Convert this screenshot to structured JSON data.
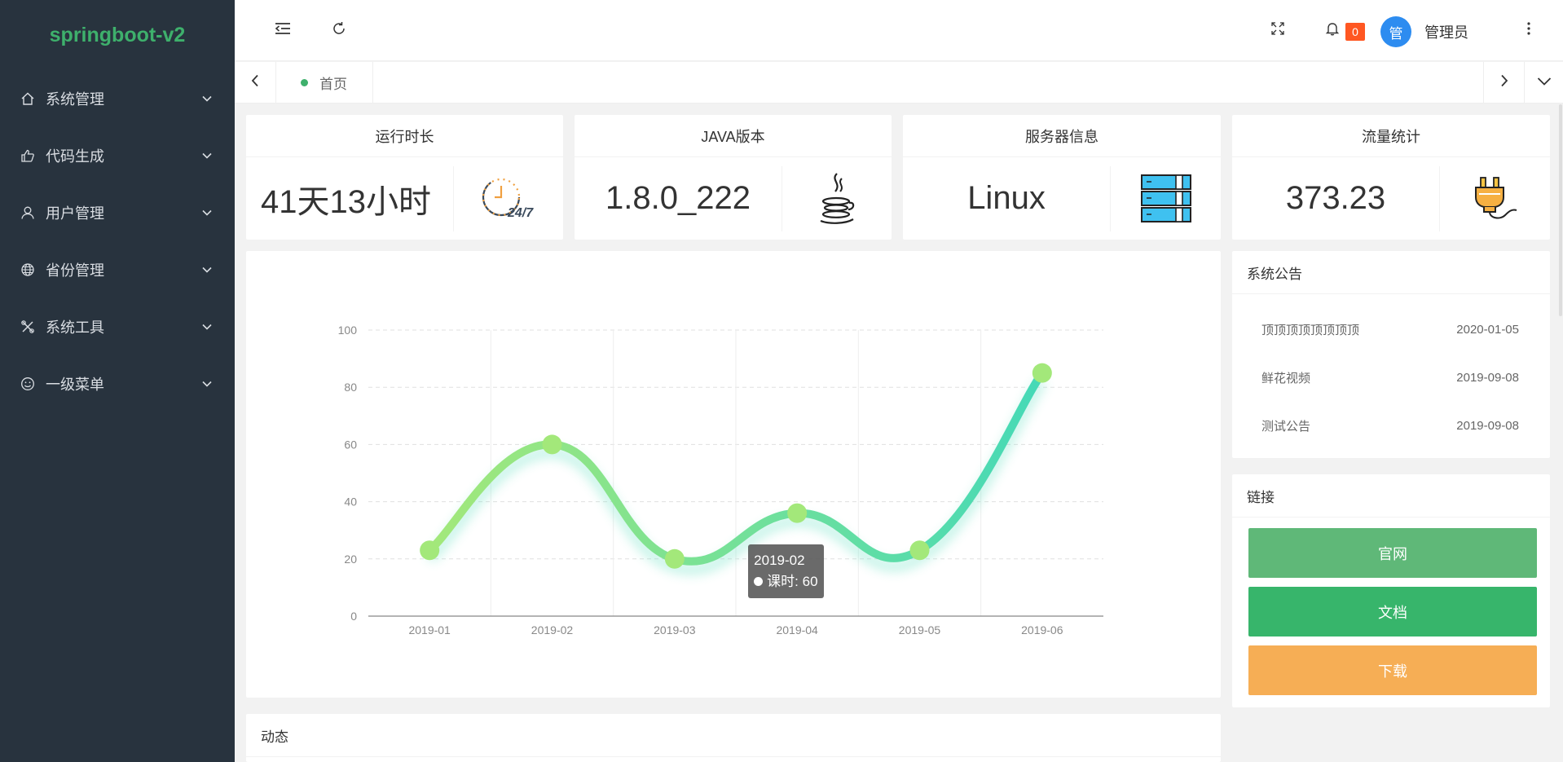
{
  "app": {
    "logo": "springboot-v2"
  },
  "sidebar": {
    "items": [
      {
        "label": "系统管理",
        "icon": "home-icon"
      },
      {
        "label": "代码生成",
        "icon": "thumbs-up-icon"
      },
      {
        "label": "用户管理",
        "icon": "user-icon"
      },
      {
        "label": "省份管理",
        "icon": "globe-icon"
      },
      {
        "label": "系统工具",
        "icon": "tools-icon"
      },
      {
        "label": "一级菜单",
        "icon": "smile-icon"
      }
    ]
  },
  "header": {
    "notification_count": "0",
    "avatar_text": "管",
    "username": "管理员"
  },
  "tabs": {
    "home": "首页"
  },
  "stats": [
    {
      "title": "运行时长",
      "value": "41天13小时",
      "icon": "clock-24-7-icon"
    },
    {
      "title": "JAVA版本",
      "value": "1.8.0_222",
      "icon": "java-icon"
    },
    {
      "title": "服务器信息",
      "value": "Linux",
      "icon": "server-icon"
    },
    {
      "title": "流量统计",
      "value": "373.23",
      "icon": "plug-icon"
    }
  ],
  "chart_data": {
    "type": "line",
    "categories": [
      "2019-01",
      "2019-02",
      "2019-03",
      "2019-04",
      "2019-05",
      "2019-06"
    ],
    "series": [
      {
        "name": "课时",
        "values": [
          23,
          60,
          20,
          36,
          23,
          85
        ]
      }
    ],
    "ylim": [
      0,
      100
    ],
    "yticks": [
      0,
      20,
      40,
      60,
      80,
      100
    ],
    "smooth": true,
    "grid": true,
    "colors": {
      "start": "#a3e87a",
      "end": "#45d9b7"
    },
    "tooltip": {
      "title": "2019-02",
      "series_label": "课时",
      "value": 60
    }
  },
  "notices": {
    "title": "系统公告",
    "items": [
      {
        "text": "顶顶顶顶顶顶顶顶",
        "date": "2020-01-05"
      },
      {
        "text": "鲜花视频",
        "date": "2019-09-08"
      },
      {
        "text": "测试公告",
        "date": "2019-09-08"
      }
    ]
  },
  "links": {
    "title": "链接",
    "items": [
      {
        "label": "官网",
        "color": "#5fb878"
      },
      {
        "label": "文档",
        "color": "#37b56b"
      },
      {
        "label": "下载",
        "color": "#f6ae55"
      }
    ]
  },
  "activity": {
    "title": "动态"
  }
}
